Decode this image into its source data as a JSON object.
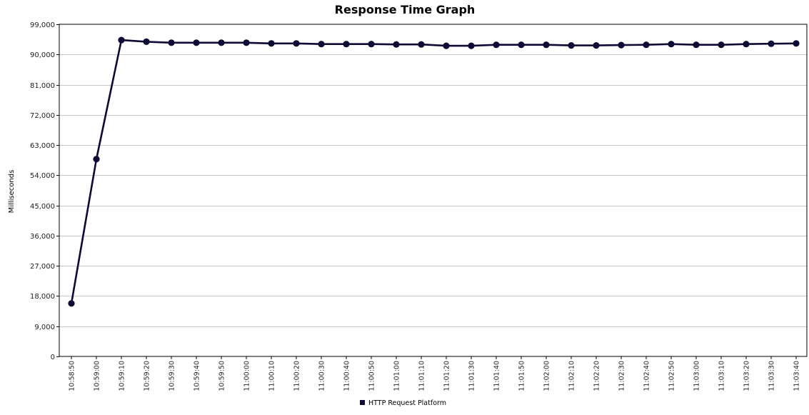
{
  "chart_data": {
    "type": "line",
    "title": "Response Time Graph",
    "xlabel": "",
    "ylabel": "Milliseconds",
    "ylim": [
      0,
      99000
    ],
    "y_ticks": [
      "0",
      "9,000",
      "18,000",
      "27,000",
      "36,000",
      "45,000",
      "54,000",
      "63,000",
      "72,000",
      "81,000",
      "90,000",
      "99,000"
    ],
    "y_tick_values": [
      0,
      9000,
      18000,
      27000,
      36000,
      45000,
      54000,
      63000,
      72000,
      81000,
      90000,
      99000
    ],
    "grid": true,
    "legend_position": "bottom",
    "categories": [
      "10:58:50",
      "10:59:00",
      "10:59:10",
      "10:59:20",
      "10:59:30",
      "10:59:40",
      "10:59:50",
      "11:00:00",
      "11:00:10",
      "11:00:20",
      "11:00:30",
      "11:00:40",
      "11:00:50",
      "11:01:00",
      "11:01:10",
      "11:01:20",
      "11:01:30",
      "11:01:40",
      "11:01:50",
      "11:02:00",
      "11:02:10",
      "11:02:20",
      "11:02:30",
      "11:02:40",
      "11:02:50",
      "11:03:00",
      "11:03:10",
      "11:03:20",
      "11:03:30",
      "11:03:40"
    ],
    "series": [
      {
        "name": "HTTP Request Platform",
        "color": "#0d0a33",
        "values": [
          15800,
          58800,
          94300,
          93800,
          93500,
          93500,
          93500,
          93500,
          93300,
          93300,
          93100,
          93100,
          93100,
          93000,
          93000,
          92600,
          92600,
          92900,
          92900,
          92900,
          92700,
          92700,
          92800,
          92900,
          93100,
          92900,
          92900,
          93100,
          93200,
          93300
        ]
      }
    ]
  }
}
